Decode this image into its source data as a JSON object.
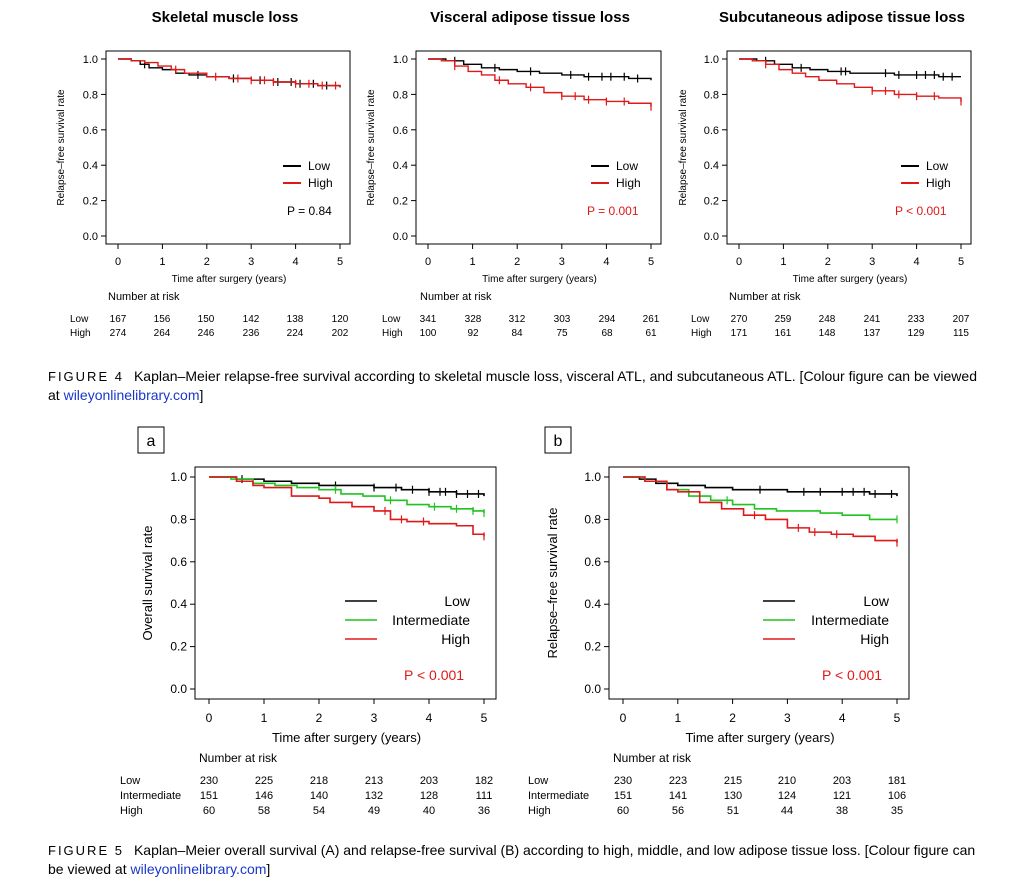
{
  "figure4": {
    "label": "FIGURE 4",
    "caption_text": "Kaplan–Meier relapse-free survival according to skeletal muscle loss, visceral ATL, and subcutaneous ATL. [Colour figure can be viewed at ",
    "caption_link": "wileyonlinelibrary.com",
    "caption_end": "]"
  },
  "figure5": {
    "label": "FIGURE 5",
    "caption_text": "Kaplan–Meier overall survival (A) and relapse-free survival (B) according to high, middle, and low adipose tissue loss. [Colour figure can be viewed at ",
    "caption_link": "wileyonlinelibrary.com",
    "caption_end": "]"
  },
  "colors": {
    "low": "#000000",
    "intermediate": "#1fc41f",
    "high": "#e01818",
    "pvalue_red": "#e01818"
  },
  "chart_data": [
    {
      "type": "line",
      "title": "Skeletal muscle loss",
      "xlabel": "Time after surgery (years)",
      "ylabel": "Relapse–free survival rate",
      "xlim": [
        0,
        5
      ],
      "ylim": [
        0,
        1
      ],
      "xticks": [
        "0",
        "1",
        "2",
        "3",
        "4",
        "5"
      ],
      "yticks": [
        "0.0",
        "0.2",
        "0.4",
        "0.6",
        "0.8",
        "1.0"
      ],
      "legend": "center-right",
      "pvalue": "P = 0.84",
      "pvalue_color": "#000000",
      "series": [
        {
          "name": "Low",
          "color": "#000000",
          "x": [
            0,
            0.3,
            0.5,
            0.7,
            1.0,
            1.3,
            1.6,
            2.0,
            2.5,
            3.0,
            3.5,
            4.0,
            4.5,
            5.0
          ],
          "y": [
            1.0,
            0.99,
            0.97,
            0.95,
            0.94,
            0.92,
            0.91,
            0.9,
            0.89,
            0.88,
            0.87,
            0.86,
            0.85,
            0.84
          ],
          "censor_x": [
            0.6,
            1.8,
            2.6,
            3.2,
            3.6,
            3.9,
            4.1,
            4.4,
            4.7
          ]
        },
        {
          "name": "High",
          "color": "#e01818",
          "x": [
            0,
            0.3,
            0.6,
            0.9,
            1.2,
            1.5,
            2.0,
            2.5,
            3.0,
            3.5,
            4.0,
            4.5,
            5.0
          ],
          "y": [
            1.0,
            0.99,
            0.98,
            0.96,
            0.94,
            0.92,
            0.9,
            0.89,
            0.88,
            0.87,
            0.86,
            0.85,
            0.84
          ],
          "censor_x": [
            1.3,
            2.2,
            2.7,
            3.0,
            3.3,
            3.5,
            4.0,
            4.3,
            4.6,
            4.9
          ]
        }
      ],
      "risk": {
        "label": "Number at risk",
        "rows": [
          {
            "name": "Low",
            "values": [
              "167",
              "156",
              "150",
              "142",
              "138",
              "120"
            ]
          },
          {
            "name": "High",
            "values": [
              "274",
              "264",
              "246",
              "236",
              "224",
              "202"
            ]
          }
        ]
      }
    },
    {
      "type": "line",
      "title": "Visceral adipose tissue loss",
      "xlabel": "Time after surgery (years)",
      "ylabel": "Relapse–free survival rate",
      "xlim": [
        0,
        5
      ],
      "ylim": [
        0,
        1
      ],
      "xticks": [
        "0",
        "1",
        "2",
        "3",
        "4",
        "5"
      ],
      "yticks": [
        "0.0",
        "0.2",
        "0.4",
        "0.6",
        "0.8",
        "1.0"
      ],
      "legend": "center-right",
      "pvalue": "P = 0.001",
      "pvalue_color": "#e01818",
      "series": [
        {
          "name": "Low",
          "color": "#000000",
          "x": [
            0,
            0.4,
            0.8,
            1.2,
            1.6,
            2.0,
            2.5,
            3.0,
            3.5,
            4.0,
            4.5,
            5.0
          ],
          "y": [
            1.0,
            0.99,
            0.97,
            0.95,
            0.94,
            0.93,
            0.92,
            0.91,
            0.9,
            0.9,
            0.89,
            0.88
          ],
          "censor_x": [
            0.6,
            1.5,
            2.3,
            3.2,
            3.6,
            3.9,
            4.1,
            4.4,
            4.7
          ]
        },
        {
          "name": "High",
          "color": "#e01818",
          "x": [
            0,
            0.3,
            0.6,
            0.9,
            1.2,
            1.5,
            1.8,
            2.2,
            2.6,
            3.0,
            3.5,
            4.0,
            4.5,
            5.0
          ],
          "y": [
            1.0,
            0.99,
            0.96,
            0.93,
            0.91,
            0.88,
            0.86,
            0.84,
            0.81,
            0.79,
            0.77,
            0.76,
            0.75,
            0.73
          ],
          "censor_x": [
            0.6,
            1.6,
            2.3,
            3.0,
            3.3,
            3.6,
            4.0,
            4.4,
            5.0
          ]
        }
      ],
      "risk": {
        "label": "Number at risk",
        "rows": [
          {
            "name": "Low",
            "values": [
              "341",
              "328",
              "312",
              "303",
              "294",
              "261"
            ]
          },
          {
            "name": "High",
            "values": [
              "100",
              "92",
              "84",
              "75",
              "68",
              "61"
            ]
          }
        ]
      }
    },
    {
      "type": "line",
      "title": "Subcutaneous adipose tissue loss",
      "xlabel": "Time after surgery (years)",
      "ylabel": "Relapse–free survival rate",
      "xlim": [
        0,
        5
      ],
      "ylim": [
        0,
        1
      ],
      "xticks": [
        "0",
        "1",
        "2",
        "3",
        "4",
        "5"
      ],
      "yticks": [
        "0.0",
        "0.2",
        "0.4",
        "0.6",
        "0.8",
        "1.0"
      ],
      "legend": "center-right",
      "pvalue": "P < 0.001",
      "pvalue_color": "#e01818",
      "series": [
        {
          "name": "Low",
          "color": "#000000",
          "x": [
            0,
            0.4,
            0.8,
            1.2,
            1.6,
            2.0,
            2.5,
            3.0,
            3.5,
            4.0,
            4.5,
            5.0
          ],
          "y": [
            1.0,
            0.99,
            0.97,
            0.95,
            0.94,
            0.93,
            0.92,
            0.92,
            0.91,
            0.91,
            0.9,
            0.9
          ],
          "censor_x": [
            0.6,
            1.4,
            2.3,
            2.4,
            3.3,
            3.6,
            4.0,
            4.2,
            4.4,
            4.6,
            4.8
          ]
        },
        {
          "name": "High",
          "color": "#e01818",
          "x": [
            0,
            0.3,
            0.6,
            0.9,
            1.2,
            1.5,
            1.8,
            2.2,
            2.6,
            3.0,
            3.5,
            4.0,
            4.5,
            5.0
          ],
          "y": [
            1.0,
            0.99,
            0.97,
            0.94,
            0.92,
            0.9,
            0.88,
            0.86,
            0.84,
            0.82,
            0.8,
            0.79,
            0.78,
            0.76
          ],
          "censor_x": [
            0.6,
            3.0,
            3.3,
            3.6,
            4.0,
            4.4,
            5.0
          ]
        }
      ],
      "risk": {
        "label": "Number at risk",
        "rows": [
          {
            "name": "Low",
            "values": [
              "270",
              "259",
              "248",
              "241",
              "233",
              "207"
            ]
          },
          {
            "name": "High",
            "values": [
              "171",
              "161",
              "148",
              "137",
              "129",
              "115"
            ]
          }
        ]
      }
    },
    {
      "type": "line",
      "panel_label": "a",
      "title": "",
      "xlabel": "Time after surgery (years)",
      "ylabel": "Overall survival rate",
      "xlim": [
        0,
        5
      ],
      "ylim": [
        0,
        1
      ],
      "xticks": [
        "0",
        "1",
        "2",
        "3",
        "4",
        "5"
      ],
      "yticks": [
        "0.0",
        "0.2",
        "0.4",
        "0.6",
        "0.8",
        "1.0"
      ],
      "legend": "center-right",
      "pvalue": "P < 0.001",
      "pvalue_color": "#e01818",
      "series": [
        {
          "name": "Low",
          "color": "#000000",
          "x": [
            0,
            0.5,
            1.0,
            1.5,
            2.0,
            2.5,
            3.0,
            3.5,
            4.0,
            4.5,
            5.0
          ],
          "y": [
            1.0,
            0.99,
            0.98,
            0.97,
            0.96,
            0.96,
            0.95,
            0.94,
            0.93,
            0.92,
            0.91
          ],
          "censor_x": [
            0.6,
            2.3,
            3.0,
            3.4,
            3.7,
            4.0,
            4.2,
            4.3,
            4.5,
            4.7,
            4.9
          ]
        },
        {
          "name": "Intermediate",
          "color": "#1fc41f",
          "x": [
            0,
            0.4,
            0.8,
            1.2,
            1.6,
            2.0,
            2.4,
            2.8,
            3.2,
            3.6,
            4.0,
            4.4,
            4.8,
            5.0
          ],
          "y": [
            1.0,
            0.99,
            0.97,
            0.96,
            0.95,
            0.94,
            0.92,
            0.91,
            0.89,
            0.87,
            0.86,
            0.85,
            0.84,
            0.83
          ],
          "censor_x": [
            2.3,
            3.3,
            4.1,
            4.5,
            4.8,
            5.0
          ]
        },
        {
          "name": "High",
          "color": "#e01818",
          "x": [
            0,
            0.5,
            0.8,
            1.0,
            1.5,
            2.0,
            2.2,
            2.6,
            3.0,
            3.3,
            3.6,
            4.0,
            4.5,
            4.8,
            5.0
          ],
          "y": [
            1.0,
            0.98,
            0.96,
            0.95,
            0.91,
            0.9,
            0.88,
            0.86,
            0.84,
            0.8,
            0.79,
            0.78,
            0.77,
            0.73,
            0.72
          ],
          "censor_x": [
            3.2,
            3.5,
            3.9,
            5.0
          ]
        }
      ],
      "risk": {
        "label": "Number at risk",
        "rows": [
          {
            "name": "Low",
            "values": [
              "230",
              "225",
              "218",
              "213",
              "203",
              "182"
            ]
          },
          {
            "name": "Intermediate",
            "values": [
              "151",
              "146",
              "140",
              "132",
              "128",
              "111"
            ]
          },
          {
            "name": "High",
            "values": [
              "60",
              "58",
              "54",
              "49",
              "40",
              "36"
            ]
          }
        ]
      }
    },
    {
      "type": "line",
      "panel_label": "b",
      "title": "",
      "xlabel": "Time after surgery (years)",
      "ylabel": "Relapse–free survival rate",
      "xlim": [
        0,
        5
      ],
      "ylim": [
        0,
        1
      ],
      "xticks": [
        "0",
        "1",
        "2",
        "3",
        "4",
        "5"
      ],
      "yticks": [
        "0.0",
        "0.2",
        "0.4",
        "0.6",
        "0.8",
        "1.0"
      ],
      "legend": "center-right",
      "pvalue": "P < 0.001",
      "pvalue_color": "#e01818",
      "series": [
        {
          "name": "Low",
          "color": "#000000",
          "x": [
            0,
            0.3,
            0.6,
            1.0,
            1.5,
            2.0,
            2.5,
            3.0,
            3.5,
            4.0,
            4.5,
            5.0
          ],
          "y": [
            1.0,
            0.99,
            0.97,
            0.96,
            0.95,
            0.94,
            0.94,
            0.93,
            0.93,
            0.93,
            0.92,
            0.91
          ],
          "censor_x": [
            2.5,
            3.3,
            3.6,
            4.0,
            4.2,
            4.4,
            4.6,
            4.9
          ]
        },
        {
          "name": "Intermediate",
          "color": "#1fc41f",
          "x": [
            0,
            0.4,
            0.8,
            1.2,
            1.6,
            2.0,
            2.4,
            2.8,
            3.2,
            3.6,
            4.0,
            4.5,
            5.0
          ],
          "y": [
            1.0,
            0.98,
            0.94,
            0.91,
            0.89,
            0.87,
            0.85,
            0.84,
            0.84,
            0.83,
            0.82,
            0.8,
            0.8
          ],
          "censor_x": [
            1.9,
            5.0
          ]
        },
        {
          "name": "High",
          "color": "#e01818",
          "x": [
            0,
            0.4,
            0.8,
            1.0,
            1.4,
            1.8,
            2.2,
            2.6,
            3.0,
            3.4,
            3.8,
            4.2,
            4.6,
            5.0
          ],
          "y": [
            1.0,
            0.98,
            0.94,
            0.93,
            0.88,
            0.85,
            0.82,
            0.8,
            0.76,
            0.74,
            0.73,
            0.72,
            0.7,
            0.69
          ],
          "censor_x": [
            2.4,
            3.2,
            3.5,
            3.9,
            5.0
          ]
        }
      ],
      "risk": {
        "label": "Number at risk",
        "rows": [
          {
            "name": "Low",
            "values": [
              "230",
              "223",
              "215",
              "210",
              "203",
              "181"
            ]
          },
          {
            "name": "Intermediate",
            "values": [
              "151",
              "141",
              "130",
              "124",
              "121",
              "106"
            ]
          },
          {
            "name": "High",
            "values": [
              "60",
              "56",
              "51",
              "44",
              "38",
              "35"
            ]
          }
        ]
      }
    }
  ]
}
